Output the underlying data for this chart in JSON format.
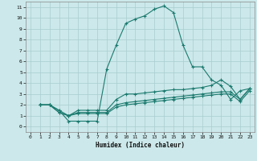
{
  "xlabel": "Humidex (Indice chaleur)",
  "xlim": [
    -0.5,
    23.5
  ],
  "ylim": [
    -0.5,
    11.5
  ],
  "xticks": [
    0,
    1,
    2,
    3,
    4,
    5,
    6,
    7,
    8,
    9,
    10,
    11,
    12,
    13,
    14,
    15,
    16,
    17,
    18,
    19,
    20,
    21,
    22,
    23
  ],
  "yticks": [
    0,
    1,
    2,
    3,
    4,
    5,
    6,
    7,
    8,
    9,
    10,
    11
  ],
  "bg_color": "#cce8ea",
  "grid_color": "#a8cdd0",
  "line_color": "#1a7a6e",
  "lines": [
    {
      "x": [
        1,
        2,
        3,
        4,
        5,
        6,
        7,
        8,
        9,
        10,
        11,
        12,
        13,
        14,
        15,
        16,
        17,
        18,
        19,
        20,
        21,
        22,
        23
      ],
      "y": [
        2.0,
        2.0,
        1.5,
        0.5,
        0.5,
        0.5,
        0.5,
        5.3,
        7.5,
        9.5,
        9.9,
        10.2,
        10.8,
        11.1,
        10.5,
        7.5,
        5.5,
        5.5,
        4.3,
        3.8,
        2.5,
        3.3,
        3.5
      ]
    },
    {
      "x": [
        1,
        2,
        3,
        4,
        5,
        6,
        7,
        8,
        9,
        10,
        11,
        12,
        13,
        14,
        15,
        16,
        17,
        18,
        19,
        20,
        21,
        22,
        23
      ],
      "y": [
        2.0,
        2.0,
        1.5,
        1.0,
        1.5,
        1.5,
        1.5,
        1.5,
        2.5,
        3.0,
        3.0,
        3.1,
        3.2,
        3.3,
        3.4,
        3.4,
        3.5,
        3.6,
        3.8,
        4.3,
        3.7,
        2.5,
        3.5
      ]
    },
    {
      "x": [
        1,
        2,
        3,
        4,
        5,
        6,
        7,
        8,
        9,
        10,
        11,
        12,
        13,
        14,
        15,
        16,
        17,
        18,
        19,
        20,
        21,
        22,
        23
      ],
      "y": [
        2.0,
        2.0,
        1.3,
        1.0,
        1.3,
        1.3,
        1.3,
        1.3,
        2.0,
        2.2,
        2.3,
        2.4,
        2.5,
        2.6,
        2.7,
        2.8,
        2.9,
        3.0,
        3.1,
        3.2,
        3.2,
        2.5,
        3.5
      ]
    },
    {
      "x": [
        1,
        2,
        3,
        4,
        5,
        6,
        7,
        8,
        9,
        10,
        11,
        12,
        13,
        14,
        15,
        16,
        17,
        18,
        19,
        20,
        21,
        22,
        23
      ],
      "y": [
        2.0,
        2.0,
        1.3,
        1.0,
        1.2,
        1.2,
        1.2,
        1.2,
        1.8,
        2.0,
        2.1,
        2.2,
        2.3,
        2.4,
        2.5,
        2.6,
        2.7,
        2.8,
        2.9,
        3.0,
        3.0,
        2.3,
        3.3
      ]
    }
  ]
}
